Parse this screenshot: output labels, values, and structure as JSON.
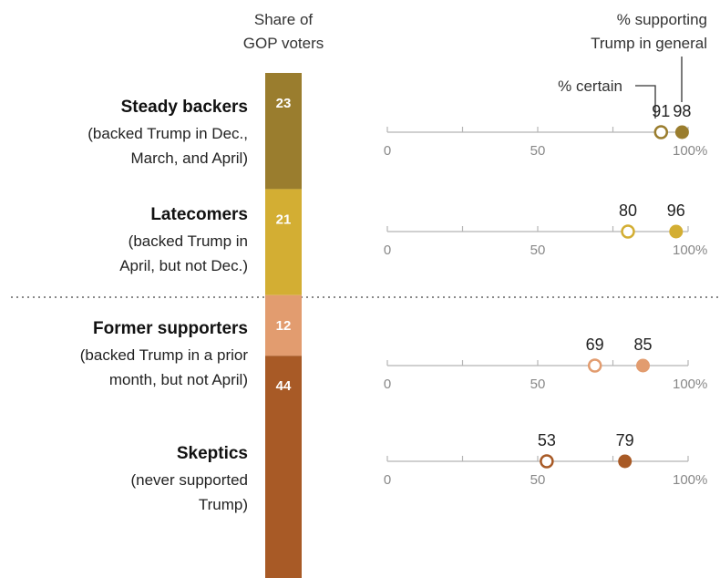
{
  "chart_data": {
    "type": "scatter",
    "headers": {
      "share": [
        "Share of",
        "GOP voters"
      ],
      "support": [
        "% supporting",
        "Trump in general"
      ],
      "certain": "% certain"
    },
    "axis": {
      "ticks": [
        0,
        50,
        100
      ],
      "tick_labels": [
        "0",
        "50",
        "100%"
      ],
      "range": [
        0,
        100
      ]
    },
    "groups": [
      {
        "title": "Steady backers",
        "sub": [
          "(backed Trump in Dec.,",
          "March, and April)"
        ],
        "share": 23,
        "certain": 91,
        "support": 98,
        "color": "#9A7D2E"
      },
      {
        "title": "Latecomers",
        "sub": [
          "(backed Trump in",
          "April, but not Dec.)"
        ],
        "share": 21,
        "certain": 80,
        "support": 96,
        "color": "#D3AE33"
      },
      {
        "title": "Former supporters",
        "sub": [
          "(backed Trump in a prior",
          "month, but not April)"
        ],
        "share": 12,
        "certain": 69,
        "support": 85,
        "color": "#E29C6F"
      },
      {
        "title": "Skeptics",
        "sub": [
          "(never supported",
          "Trump)"
        ],
        "share": 44,
        "certain": 53,
        "support": 79,
        "color": "#A85A26"
      }
    ]
  }
}
